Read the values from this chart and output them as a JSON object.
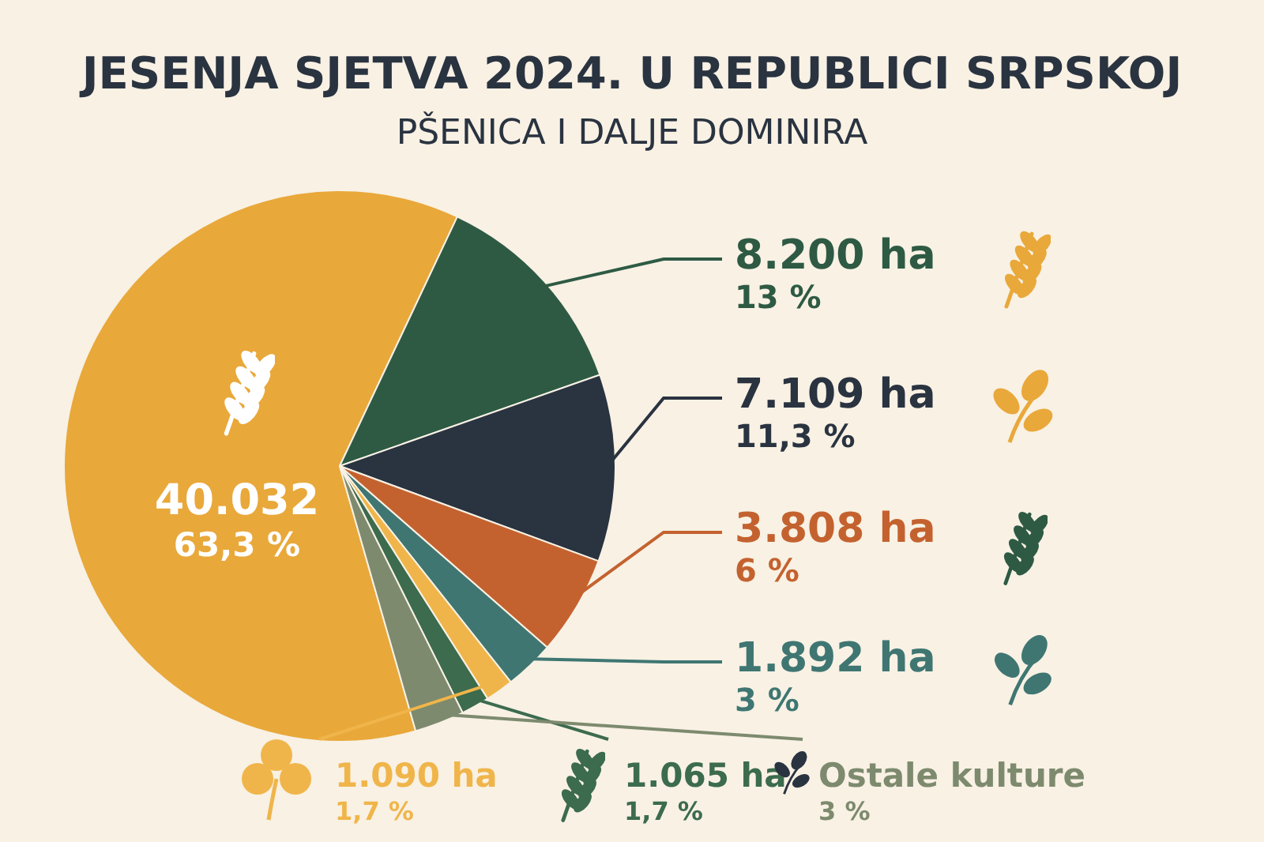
{
  "chart_data": {
    "type": "pie",
    "title": "JESENJA SJETVA 2024. U REPUBLICI SRPSKOJ",
    "subtitle": "PŠENICA I DALJE DOMINIRA",
    "categories": [
      null,
      null,
      null,
      null,
      null,
      null,
      null,
      "Ostale kulture"
    ],
    "values": [
      63.3,
      13,
      11.3,
      6,
      3,
      1.7,
      1.7,
      3
    ],
    "colors": [
      "#e9a83a",
      "#2e5a44",
      "#2a3340",
      "#c4622f",
      "#3f7672",
      "#f0b54a",
      "#3c6b4e",
      "#7d8a6e"
    ],
    "value_labels": [
      "40.032\n63,3 %",
      "8.200 ha\n13 %",
      "7.109 ha\n11,3 %",
      "3.808 ha\n6 %",
      "1.892 ha\n3 %",
      "1.090 ha\n1,7 %",
      "1.065 ha\n1,7 %",
      "3 %"
    ],
    "legend": false
  }
}
